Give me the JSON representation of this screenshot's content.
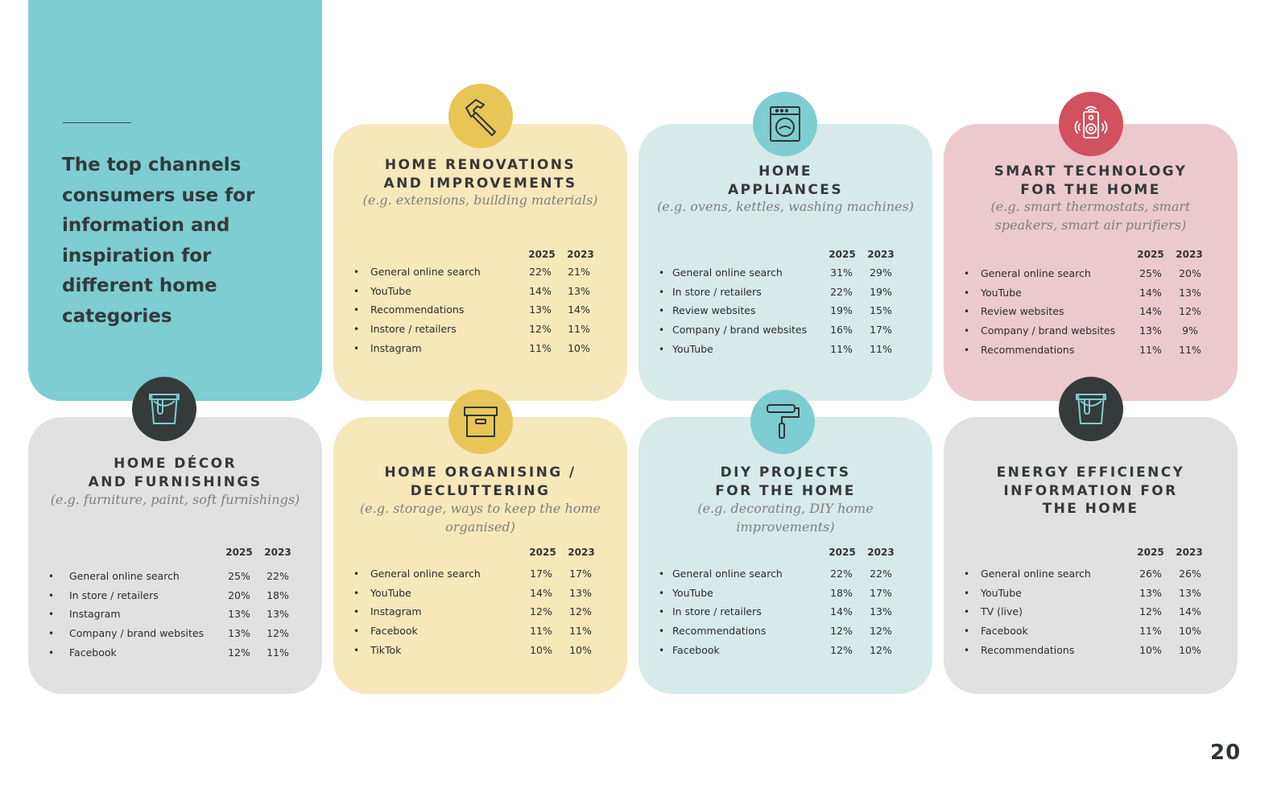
{
  "intro": {
    "text": "The top channels consumers use for information and inspiration for different home categories"
  },
  "year_current": "2025",
  "year_previous": "2023",
  "page_number": "20",
  "colors": {
    "teal": "#7ecdd2",
    "yellow_card": "#f6e8bb",
    "yellow_icon": "#e7c657",
    "blue_card": "#d7eaea",
    "pink_card": "#ecc9cd",
    "pink_icon": "#d1515f",
    "grey_card": "#e1e1e1",
    "dark_icon": "#343b3a"
  },
  "cards": [
    {
      "title": "HOME RENOVATIONS\nAND IMPROVEMENTS",
      "subtitle": "(e.g. extensions, building materials)",
      "icon": "hammer-icon",
      "rows": [
        {
          "channel": "General online search",
          "y2025": "22%",
          "y2023": "21%"
        },
        {
          "channel": "YouTube",
          "y2025": "14%",
          "y2023": "13%"
        },
        {
          "channel": "Recommendations",
          "y2025": "13%",
          "y2023": "14%"
        },
        {
          "channel": "Instore / retailers",
          "y2025": "12%",
          "y2023": "11%"
        },
        {
          "channel": "Instagram",
          "y2025": "11%",
          "y2023": "10%"
        }
      ]
    },
    {
      "title": "HOME\nAPPLIANCES",
      "subtitle": "(e.g. ovens, kettles, washing machines)",
      "icon": "washing-machine-icon",
      "rows": [
        {
          "channel": "General online search",
          "y2025": "31%",
          "y2023": "29%"
        },
        {
          "channel": "In store / retailers",
          "y2025": "22%",
          "y2023": "19%"
        },
        {
          "channel": "Review websites",
          "y2025": "19%",
          "y2023": "15%"
        },
        {
          "channel": "Company / brand websites",
          "y2025": "16%",
          "y2023": "17%"
        },
        {
          "channel": "YouTube",
          "y2025": "11%",
          "y2023": "11%"
        }
      ]
    },
    {
      "title": "SMART TECHNOLOGY\nFOR THE HOME",
      "subtitle": "(e.g. smart thermostats, smart speakers, smart air purifiers)",
      "icon": "smart-speaker-icon",
      "rows": [
        {
          "channel": "General online search",
          "y2025": "25%",
          "y2023": "20%"
        },
        {
          "channel": "YouTube",
          "y2025": "14%",
          "y2023": "13%"
        },
        {
          "channel": "Review websites",
          "y2025": "14%",
          "y2023": "12%"
        },
        {
          "channel": "Company / brand websites",
          "y2025": "13%",
          "y2023": "9%"
        },
        {
          "channel": "Recommendations",
          "y2025": "11%",
          "y2023": "11%"
        }
      ]
    },
    {
      "title": "HOME DÉCOR\nAND FURNISHINGS",
      "subtitle": "(e.g. furniture, paint, soft furnishings)",
      "icon": "paint-bucket-icon",
      "rows": [
        {
          "channel": "General online search",
          "y2025": "25%",
          "y2023": "22%"
        },
        {
          "channel": "In store / retailers",
          "y2025": "20%",
          "y2023": "18%"
        },
        {
          "channel": "Instagram",
          "y2025": "13%",
          "y2023": "13%"
        },
        {
          "channel": "Company / brand websites",
          "y2025": "13%",
          "y2023": "12%"
        },
        {
          "channel": "Facebook",
          "y2025": "12%",
          "y2023": "11%"
        }
      ]
    },
    {
      "title": "HOME ORGANISING /\nDECLUTTERING",
      "subtitle": "(e.g. storage, ways to keep the home organised)",
      "icon": "storage-box-icon",
      "rows": [
        {
          "channel": "General online search",
          "y2025": "17%",
          "y2023": "17%"
        },
        {
          "channel": "YouTube",
          "y2025": "14%",
          "y2023": "13%"
        },
        {
          "channel": "Instagram",
          "y2025": "12%",
          "y2023": "12%"
        },
        {
          "channel": "Facebook",
          "y2025": "11%",
          "y2023": "11%"
        },
        {
          "channel": "TikTok",
          "y2025": "10%",
          "y2023": "10%"
        }
      ]
    },
    {
      "title": "DIY PROJECTS\nFOR THE HOME",
      "subtitle": "(e.g. decorating, DIY home improvements)",
      "icon": "paint-roller-icon",
      "rows": [
        {
          "channel": "General online search",
          "y2025": "22%",
          "y2023": "22%"
        },
        {
          "channel": "YouTube",
          "y2025": "18%",
          "y2023": "17%"
        },
        {
          "channel": "In store / retailers",
          "y2025": "14%",
          "y2023": "13%"
        },
        {
          "channel": "Recommendations",
          "y2025": "12%",
          "y2023": "12%"
        },
        {
          "channel": "Facebook",
          "y2025": "12%",
          "y2023": "12%"
        }
      ]
    },
    {
      "title": "ENERGY EFFICIENCY\nINFORMATION FOR\nTHE HOME",
      "subtitle": "",
      "icon": "paint-bucket-icon",
      "rows": [
        {
          "channel": "General online search",
          "y2025": "26%",
          "y2023": "26%"
        },
        {
          "channel": "YouTube",
          "y2025": "13%",
          "y2023": "13%"
        },
        {
          "channel": "TV (live)",
          "y2025": "12%",
          "y2023": "14%"
        },
        {
          "channel": "Facebook",
          "y2025": "11%",
          "y2023": "10%"
        },
        {
          "channel": "Recommendations",
          "y2025": "10%",
          "y2023": "10%"
        }
      ]
    }
  ]
}
